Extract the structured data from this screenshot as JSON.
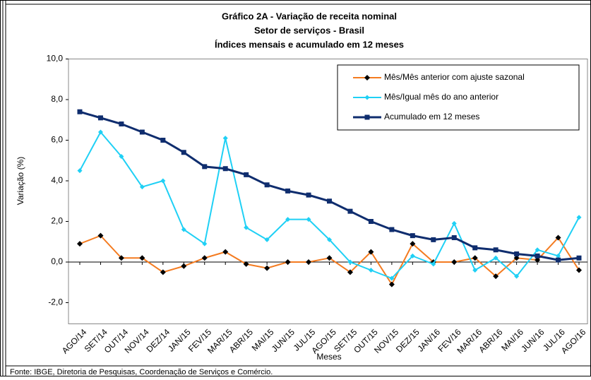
{
  "chart_data": {
    "type": "line",
    "title": [
      "Gráfico 2A - Variação de receita nominal",
      "Setor de serviços - Brasil",
      "Índices mensais e acumulado em 12 meses"
    ],
    "x_label": "Meses",
    "y_label": "Variação (%)",
    "source": "Fonte: IBGE, Diretoria de Pesquisas, Coordenação de Serviços e Comércio.",
    "categories": [
      "AGO/14",
      "SET/14",
      "OUT/14",
      "NOV/14",
      "DEZ/14",
      "JAN/15",
      "FEV/15",
      "MAR/15",
      "ABR/15",
      "MAI/15",
      "JUN/15",
      "JUL/15",
      "AGO/15",
      "SET/15",
      "OUT/15",
      "NOV/15",
      "DEZ/15",
      "JAN/16",
      "FEV/16",
      "MAR/16",
      "ABR/16",
      "MAI/16",
      "JUN/16",
      "JUL/16",
      "AGO/16"
    ],
    "series": [
      {
        "name": "Mês/Mês anterior com ajuste sazonal",
        "color": "#f47b20",
        "marker": "diamond-dark",
        "values": [
          0.9,
          1.3,
          0.2,
          0.2,
          -0.5,
          -0.2,
          0.2,
          0.5,
          -0.1,
          -0.3,
          0.0,
          0.0,
          0.2,
          -0.5,
          0.5,
          -1.1,
          0.9,
          0.0,
          0.0,
          0.2,
          -0.7,
          0.2,
          0.1,
          1.2,
          -0.4
        ]
      },
      {
        "name": "Mês/Igual mês do ano anterior",
        "color": "#1fd0f5",
        "marker": "diamond",
        "values": [
          4.5,
          6.4,
          5.2,
          3.7,
          4.0,
          1.6,
          0.9,
          6.1,
          1.7,
          1.1,
          2.1,
          2.1,
          1.1,
          0.0,
          -0.4,
          -0.8,
          0.3,
          -0.1,
          1.9,
          -0.4,
          0.2,
          -0.7,
          0.6,
          0.3,
          2.2
        ]
      },
      {
        "name": "Acumulado em 12 meses",
        "color": "#0f2d6e",
        "marker": "square",
        "values": [
          7.4,
          7.1,
          6.8,
          6.4,
          6.0,
          5.4,
          4.7,
          4.6,
          4.3,
          3.8,
          3.5,
          3.3,
          3.0,
          2.5,
          2.0,
          1.6,
          1.3,
          1.1,
          1.2,
          0.7,
          0.6,
          0.4,
          0.3,
          0.1,
          0.2
        ]
      }
    ],
    "ylim": [
      -2,
      10
    ],
    "yticks": [
      {
        "value": -2,
        "label": "-2,0"
      },
      {
        "value": 0,
        "label": "0,0"
      },
      {
        "value": 2,
        "label": "2,0"
      },
      {
        "value": 4,
        "label": "4,0"
      },
      {
        "value": 6,
        "label": "6,0"
      },
      {
        "value": 8,
        "label": "8,0"
      },
      {
        "value": 10,
        "label": "10,0"
      }
    ]
  }
}
